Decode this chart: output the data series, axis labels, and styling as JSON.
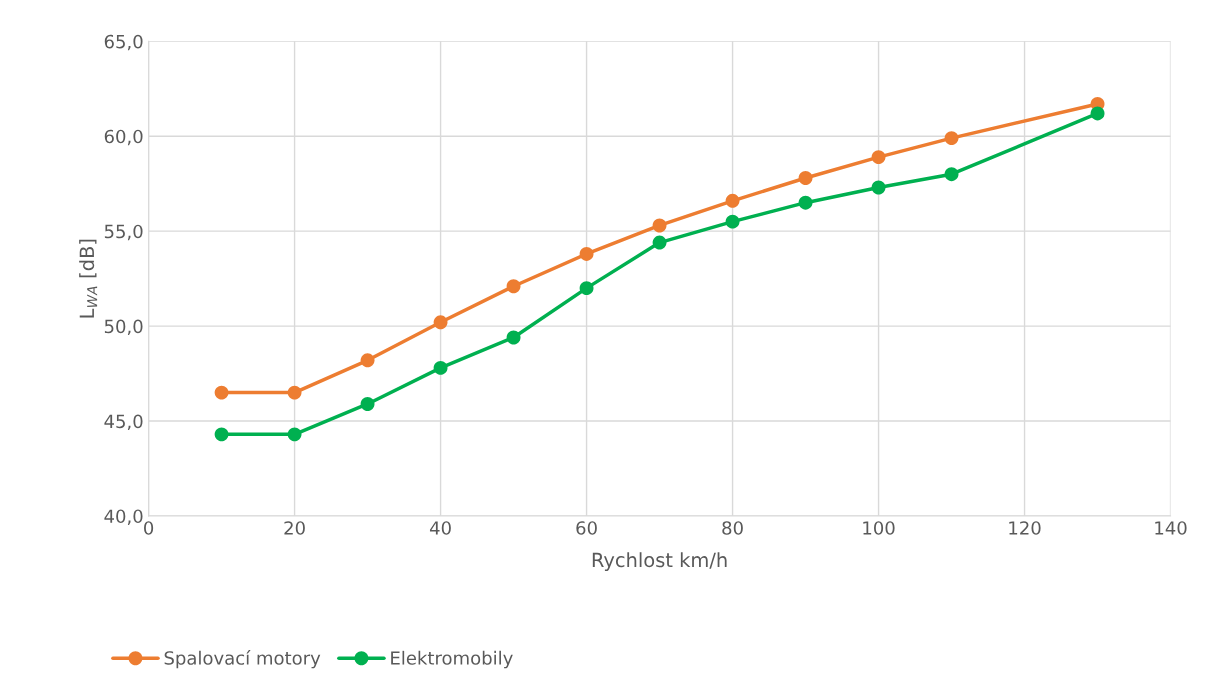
{
  "chart_data": {
    "type": "line",
    "xlabel": "Rychlost km/h",
    "ylabel": "L$_{WA}$ [dB]",
    "x": [
      10,
      20,
      30,
      40,
      50,
      60,
      70,
      80,
      90,
      100,
      110,
      130
    ],
    "series": [
      {
        "name": "Spalovací motory",
        "color": "#ed7d31",
        "values": [
          46.5,
          46.5,
          48.2,
          50.2,
          52.1,
          53.8,
          55.3,
          56.6,
          57.8,
          58.9,
          59.9,
          61.7
        ]
      },
      {
        "name": "Elektromobily",
        "color": "#00b050",
        "values": [
          44.3,
          44.3,
          45.9,
          47.8,
          49.4,
          52.0,
          54.4,
          55.5,
          56.5,
          57.3,
          58.0,
          61.2
        ]
      }
    ],
    "xlim": [
      0,
      140
    ],
    "xticks": [
      0,
      20,
      40,
      60,
      80,
      100,
      120,
      140
    ],
    "ylim": [
      40,
      65
    ],
    "yticks": [
      {
        "value": 40,
        "label": "40,0"
      },
      {
        "value": 45,
        "label": "45,0"
      },
      {
        "value": 50,
        "label": "50,0"
      },
      {
        "value": 55,
        "label": "55,0"
      },
      {
        "value": 60,
        "label": "60,0"
      },
      {
        "value": 65,
        "label": "65,0"
      }
    ],
    "grid": true,
    "legend": "bottom left",
    "marker": "circle",
    "line_style": "solid"
  }
}
